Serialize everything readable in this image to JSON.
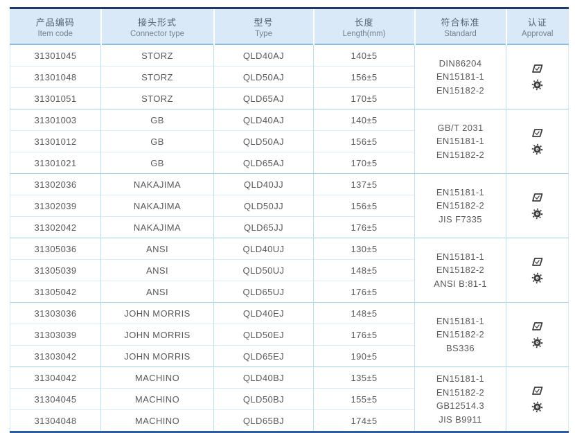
{
  "header": {
    "columns": [
      {
        "zh": "产品编码",
        "en": "Item code"
      },
      {
        "zh": "接头形式",
        "en": "Connector type"
      },
      {
        "zh": "型号",
        "en": "Type"
      },
      {
        "zh": "长度",
        "en": "Length(mm)"
      },
      {
        "zh": "符合标准",
        "en": "Standard"
      },
      {
        "zh": "认证",
        "en": "Approval"
      }
    ]
  },
  "groups": [
    {
      "rows": [
        {
          "item_code": "31301045",
          "connector_type": "STORZ",
          "type": "QLD40AJ",
          "length": "140±5"
        },
        {
          "item_code": "31301048",
          "connector_type": "STORZ",
          "type": "QLD50AJ",
          "length": "156±5"
        },
        {
          "item_code": "31301051",
          "connector_type": "STORZ",
          "type": "QLD65AJ",
          "length": "170±5"
        }
      ],
      "standards": [
        "DIN86204",
        "EN15181-1",
        "EN15182-2"
      ],
      "approval_icons": [
        "certificate-stamp-icon",
        "wheelmark-icon"
      ]
    },
    {
      "rows": [
        {
          "item_code": "31301003",
          "connector_type": "GB",
          "type": "QLD40AJ",
          "length": "140±5"
        },
        {
          "item_code": "31301012",
          "connector_type": "GB",
          "type": "QLD50AJ",
          "length": "156±5"
        },
        {
          "item_code": "31301021",
          "connector_type": "GB",
          "type": "QLD65AJ",
          "length": "170±5"
        }
      ],
      "standards": [
        "GB/T 2031",
        "EN15181-1",
        "EN15182-2"
      ],
      "approval_icons": [
        "certificate-stamp-icon",
        "wheelmark-icon"
      ]
    },
    {
      "rows": [
        {
          "item_code": "31302036",
          "connector_type": "NAKAJIMA",
          "type": "QLD40JJ",
          "length": "137±5"
        },
        {
          "item_code": "31302039",
          "connector_type": "NAKAJIMA",
          "type": "QLD50JJ",
          "length": "156±5"
        },
        {
          "item_code": "31302042",
          "connector_type": "NAKAJIMA",
          "type": "QLD65JJ",
          "length": "176±5"
        }
      ],
      "standards": [
        "EN15181-1",
        "EN15182-2",
        "JIS F7335"
      ],
      "approval_icons": [
        "certificate-stamp-icon",
        "wheelmark-icon"
      ]
    },
    {
      "rows": [
        {
          "item_code": "31305036",
          "connector_type": "ANSI",
          "type": "QLD40UJ",
          "length": "130±5"
        },
        {
          "item_code": "31305039",
          "connector_type": "ANSI",
          "type": "QLD50UJ",
          "length": "148±5"
        },
        {
          "item_code": "31305042",
          "connector_type": "ANSI",
          "type": "QLD65UJ",
          "length": "176±5"
        }
      ],
      "standards": [
        "EN15181-1",
        "EN15182-2",
        "ANSI B:81-1"
      ],
      "approval_icons": [
        "certificate-stamp-icon",
        "wheelmark-icon"
      ]
    },
    {
      "rows": [
        {
          "item_code": "31303036",
          "connector_type": "JOHN MORRIS",
          "type": "QLD40EJ",
          "length": "148±5"
        },
        {
          "item_code": "31303039",
          "connector_type": "JOHN MORRIS",
          "type": "QLD50EJ",
          "length": "176±5"
        },
        {
          "item_code": "31303042",
          "connector_type": "JOHN MORRIS",
          "type": "QLD65EJ",
          "length": "190±5"
        }
      ],
      "standards": [
        "EN15181-1",
        "EN15182-2",
        "BS336"
      ],
      "approval_icons": [
        "certificate-stamp-icon",
        "wheelmark-icon"
      ]
    },
    {
      "rows": [
        {
          "item_code": "31304042",
          "connector_type": "MACHINO",
          "type": "QLD40BJ",
          "length": "135±5"
        },
        {
          "item_code": "31304045",
          "connector_type": "MACHINO",
          "type": "QLD50BJ",
          "length": "155±5"
        },
        {
          "item_code": "31304048",
          "connector_type": "MACHINO",
          "type": "QLD65BJ",
          "length": "174±5"
        }
      ],
      "standards": [
        "EN15181-1",
        "EN15182-2",
        "GB12514.3",
        "JIS B9911"
      ],
      "approval_icons": [
        "certificate-stamp-icon",
        "wheelmark-icon"
      ]
    }
  ],
  "colors": {
    "top_border": "#21386b",
    "bottom_border": "#2e5ca0",
    "header_bg": "#d9e9f7",
    "grid_line": "#bcdff1",
    "row_line": "#d8edf8",
    "group_line": "#9ed2ec",
    "body_text": "#58595b",
    "header_text_zh": "#536272",
    "header_text_en": "#74828f",
    "icon": "#3d3d3d"
  }
}
